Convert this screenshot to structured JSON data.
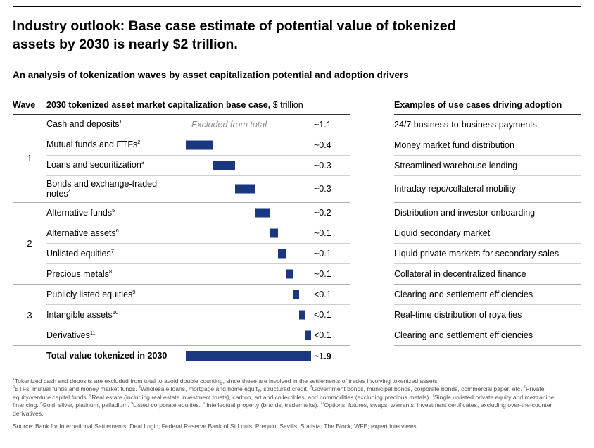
{
  "colors": {
    "bar": "#1b3780",
    "excluded_text": "#8c8c8c"
  },
  "header": {
    "title": "Industry outlook: Base case estimate of potential value of tokenized assets by 2030 is nearly $2 trillion.",
    "subtitle": "An analysis of tokenization waves by asset capitalization potential and adoption drivers"
  },
  "table_headers": {
    "wave": "Wave",
    "chart_bold": "2030 tokenized asset market capitalization base case,",
    "chart_unit": " $ trillion",
    "use_cases": "Examples of use cases driving adoption"
  },
  "chart_data": {
    "type": "bar",
    "variant": "waterfall",
    "title": "2030 tokenized asset market capitalization base case, $ trillion",
    "unit": "$ trillion",
    "xlim": [
      0,
      1.9
    ],
    "legend": "none",
    "grid": false,
    "rows": [
      {
        "wave": "1",
        "label": "Cash and deposits",
        "sup": "1",
        "note": "Excluded from total",
        "value_label": "~1.1",
        "value": 1.1,
        "bar": null,
        "use_case": "24/7 business-to-business payments"
      },
      {
        "wave": "1",
        "label": "Mutual funds and ETFs",
        "sup": "2",
        "value_label": "~0.4",
        "value": 0.4,
        "bar": [
          0,
          0.42
        ],
        "use_case": "Money market fund distribution"
      },
      {
        "wave": "1",
        "label": "Loans and securitization",
        "sup": "3",
        "value_label": "~0.3",
        "value": 0.3,
        "bar": [
          0.42,
          0.75
        ],
        "use_case": "Streamlined warehouse lending"
      },
      {
        "wave": "1",
        "label": "Bonds and exchange-traded notes",
        "sup": "4",
        "value_label": "~0.3",
        "value": 0.3,
        "bar": [
          0.75,
          1.05
        ],
        "use_case": "Intraday repo/collateral mobility"
      },
      {
        "wave": "2",
        "label": "Alternative funds",
        "sup": "5",
        "value_label": "~0.2",
        "value": 0.2,
        "bar": [
          1.05,
          1.27
        ],
        "use_case": "Distribution and investor onboarding"
      },
      {
        "wave": "2",
        "label": "Alternative assets",
        "sup": "6",
        "value_label": "~0.1",
        "value": 0.1,
        "bar": [
          1.27,
          1.4
        ],
        "use_case": "Liquid secondary market"
      },
      {
        "wave": "2",
        "label": "Unlisted equities",
        "sup": "7",
        "value_label": "~0.1",
        "value": 0.1,
        "bar": [
          1.4,
          1.53
        ],
        "use_case": "Liquid private markets for secondary sales"
      },
      {
        "wave": "2",
        "label": "Precious metals",
        "sup": "8",
        "value_label": "~0.1",
        "value": 0.1,
        "bar": [
          1.53,
          1.63
        ],
        "use_case": "Collateral in decentralized finance"
      },
      {
        "wave": "3",
        "label": "Publicly listed equities",
        "sup": "9",
        "value_label": "<0.1",
        "value": 0.1,
        "bar": [
          1.63,
          1.72
        ],
        "use_case": "Clearing and settlement efficiencies"
      },
      {
        "wave": "3",
        "label": "Intangible assets",
        "sup": "10",
        "value_label": "<0.1",
        "value": 0.1,
        "bar": [
          1.72,
          1.81
        ],
        "use_case": "Real-time distribution of royalties"
      },
      {
        "wave": "3",
        "label": "Derivatives",
        "sup": "11",
        "value_label": "<0.1",
        "value": 0.1,
        "bar": [
          1.81,
          1.9
        ],
        "use_case": "Clearing and settlement efficiencies"
      }
    ],
    "total_row": {
      "label": "Total value tokenized in 2030",
      "value_label": "~1.9",
      "value": 1.9,
      "bar": [
        0,
        1.9
      ],
      "use_case": ""
    }
  },
  "footnotes": [
    {
      "sup": "1",
      "text": "Tokenized cash and deposits are excluded from total to avoid double counting, since these are involved in the settlements of trades involving tokenized assets."
    },
    {
      "sup": "2",
      "text": "ETFs, mutual funds and money market funds."
    },
    {
      "sup": "3",
      "text": "Wholesale loans, mortgage and home equity, structured credit."
    },
    {
      "sup": "4",
      "text": "Government bonds, municipal bonds, corporate bonds, commercial paper, etc."
    },
    {
      "sup": "5",
      "text": "Private equity/venture capital funds."
    },
    {
      "sup": "6",
      "text": "Real estate (including real estate investment trusts), carbon, art and collectibles, and commodities (excluding precious metals)."
    },
    {
      "sup": "7",
      "text": "Single unlisted private equity and mezzanine financing."
    },
    {
      "sup": "8",
      "text": "Gold, silver, platinum, palladium."
    },
    {
      "sup": "9",
      "text": "Listed corporate equities."
    },
    {
      "sup": "10",
      "text": "Intellectual property (brands, trademarks)."
    },
    {
      "sup": "11",
      "text": "Options, futures, swaps, warrants, investment certificates, excluding over-the-counter derivatives."
    }
  ],
  "source": "Source: Bank for International Settlements; Deal Logic; Federal Reserve Bank of St Louis; Prequin, Savills; Statista; The Block; WFE; expert interviews"
}
